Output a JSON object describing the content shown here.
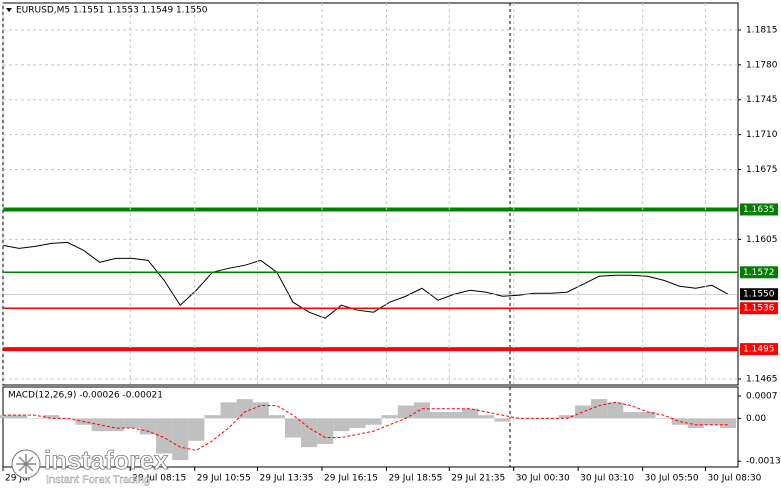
{
  "chart_data": [
    {
      "type": "line",
      "title": "EURUSD,M5  1.1551 1.1553 1.1549 1.1550",
      "xlim": [
        0,
        45
      ],
      "ylim": [
        1.1459,
        1.1842
      ],
      "yticks": [
        1.1815,
        {
          "value": 1.178,
          "label": "1.1780"
        },
        1.1745,
        {
          "value": 1.171,
          "label": "1.1710"
        },
        1.1675,
        1.1605,
        1.1465
      ],
      "grid": true,
      "series": [
        {
          "color": "#000000",
          "values": [
            1.1599,
            1.1596,
            1.1598,
            1.1601,
            1.1602,
            1.1594,
            1.1582,
            1.1586,
            1.1586,
            1.1584,
            1.1564,
            1.1539,
            1.1554,
            1.1572,
            1.1576,
            1.1579,
            1.1584,
            1.1572,
            1.1542,
            1.1532,
            1.1526,
            1.1539,
            1.1534,
            1.1532,
            1.1542,
            1.1548,
            1.1556,
            1.1544,
            1.155,
            1.1554,
            1.1552,
            1.1548,
            1.1549,
            1.1551,
            1.1551,
            1.1552,
            1.156,
            1.1568,
            1.1569,
            1.1569,
            1.1568,
            1.1564,
            1.1558,
            1.1556,
            1.1559,
            1.155
          ]
        }
      ],
      "levels": [
        {
          "value": 1.1635,
          "color": "#008000",
          "style": "thick"
        },
        {
          "value": 1.1572,
          "color": "#008000",
          "style": "thin"
        },
        {
          "value": {
            "value": 1.155,
            "label": "1.1550"
          },
          "color": "#000000",
          "style": "price"
        },
        {
          "value": 1.1536,
          "color": "#ff0000",
          "style": "thin"
        },
        {
          "value": 1.1495,
          "color": "#ff0000",
          "style": "thick"
        }
      ]
    },
    {
      "type": "macd",
      "title": "MACD(12,26,9) -0.00026 -0.00021",
      "xlim": [
        0,
        45
      ],
      "xticks": [
        {
          "value": 0,
          "label": "29 Jul"
        },
        {
          "value": 7.9,
          "label": "29 Jul 08:15"
        },
        {
          "value": 11.9,
          "label": "29 Jul 10:55"
        },
        {
          "value": 15.8,
          "label": "29 Jul 13:35"
        },
        {
          "value": 19.8,
          "label": "29 Jul 16:15"
        },
        {
          "value": 23.8,
          "label": "29 Jul 18:55"
        },
        {
          "value": 27.7,
          "label": "29 Jul 21:35"
        },
        {
          "value": 31.7,
          "label": "30 Jul 00:30"
        },
        {
          "value": 35.7,
          "label": "30 Jul 03:10"
        },
        {
          "value": 39.7,
          "label": "30 Jul 05:50"
        },
        {
          "value": 43.6,
          "label": "30 Jul 08:30"
        }
      ],
      "ylim": [
        -0.00152,
        0.00098
      ],
      "yticks": [
        0.0007,
        {
          "value": 0,
          "label": "0.00"
        },
        -0.00134
      ],
      "series": [
        {
          "type": "histogram",
          "color": "#c0c0c0",
          "values": [
            0.0001,
            0.0001,
            0,
            0.0001,
            0,
            -0.0002,
            -0.0004,
            -0.0004,
            -0.0003,
            -0.0005,
            -0.0011,
            -0.0013,
            -0.0007,
            0.0001,
            0.0005,
            0.0006,
            0.0005,
            0.0001,
            -0.0006,
            -0.0009,
            -0.0008,
            -0.0004,
            -0.0003,
            -0.0002,
            0.0001,
            0.0004,
            0.0005,
            0.0002,
            0.0002,
            0.0003,
            0.0001,
            -0.0001,
            0,
            0,
            0,
            0.0001,
            0.0004,
            0.0006,
            0.0005,
            0.0002,
            0.0002,
            0,
            -0.0002,
            -0.0003,
            -0.0002,
            -0.0003
          ]
        },
        {
          "type": "signal",
          "color": "#ff0000",
          "values": [
            0.0001,
            0.0001,
            0.0001,
            0,
            0,
            -0.0001,
            -0.0002,
            -0.0003,
            -0.0003,
            -0.0004,
            -0.0006,
            -0.0009,
            -0.001,
            -0.0007,
            -0.0003,
            0.0002,
            0.0004,
            0.0004,
            0.0001,
            -0.0003,
            -0.0006,
            -0.0006,
            -0.0005,
            -0.0004,
            -0.0002,
            0,
            0.0003,
            0.0003,
            0.0003,
            0.0003,
            0.0002,
            0.0001,
            0,
            0,
            0,
            0,
            0.0002,
            0.0004,
            0.0005,
            0.0004,
            0.0002,
            0.0001,
            -0.0001,
            -0.0002,
            -0.0002,
            -0.0002
          ]
        }
      ]
    }
  ],
  "watermark": {
    "brand": "instaforex",
    "tagline": "Instant Forex Trading"
  }
}
